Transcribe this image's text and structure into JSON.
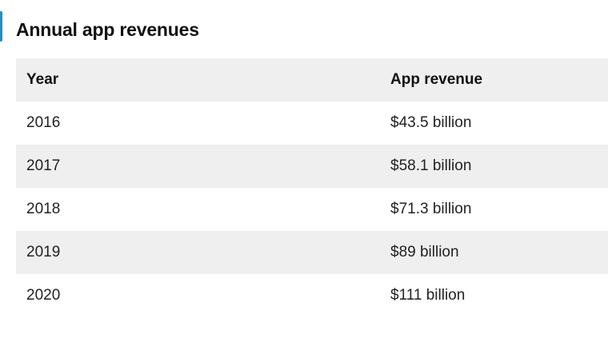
{
  "title": "Annual app revenues",
  "table": {
    "headers": [
      "Year",
      "App revenue"
    ],
    "rows": [
      [
        "2016",
        "$43.5 billion"
      ],
      [
        "2017",
        "$58.1 billion"
      ],
      [
        "2018",
        "$71.3 billion"
      ],
      [
        "2019",
        "$89 billion"
      ],
      [
        "2020",
        "$111 billion"
      ]
    ]
  },
  "colors": {
    "accent": "#1a8fd0",
    "stripe": "#efefef"
  }
}
